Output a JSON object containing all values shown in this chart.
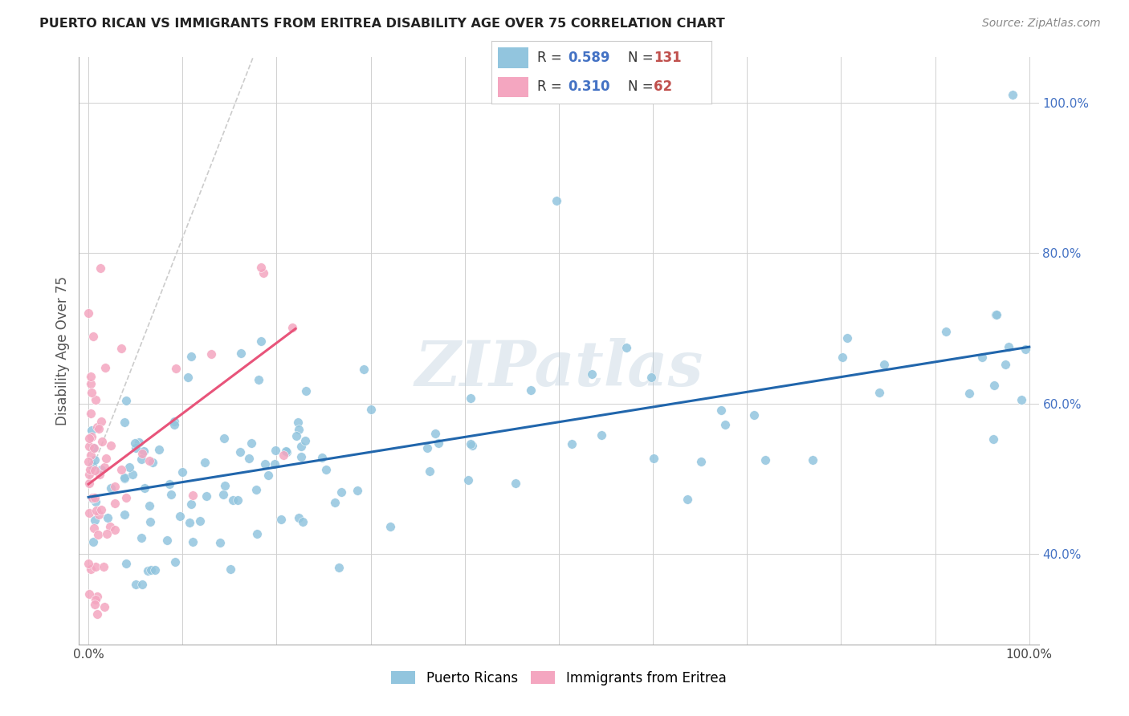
{
  "title": "PUERTO RICAN VS IMMIGRANTS FROM ERITREA DISABILITY AGE OVER 75 CORRELATION CHART",
  "source": "Source: ZipAtlas.com",
  "ylabel": "Disability Age Over 75",
  "legend_blue_R": "0.589",
  "legend_blue_N": "131",
  "legend_pink_R": "0.310",
  "legend_pink_N": "62",
  "legend_label_blue": "Puerto Ricans",
  "legend_label_pink": "Immigrants from Eritrea",
  "blue_color": "#92c5de",
  "pink_color": "#f4a6c0",
  "trendline_blue_color": "#2166ac",
  "trendline_pink_color": "#e8547a",
  "trendline_pink_dashed_color": "#ccaabb",
  "watermark": "ZIPatlas",
  "ylim_min": 0.28,
  "ylim_max": 1.06,
  "xlim_min": -0.01,
  "xlim_max": 1.01
}
